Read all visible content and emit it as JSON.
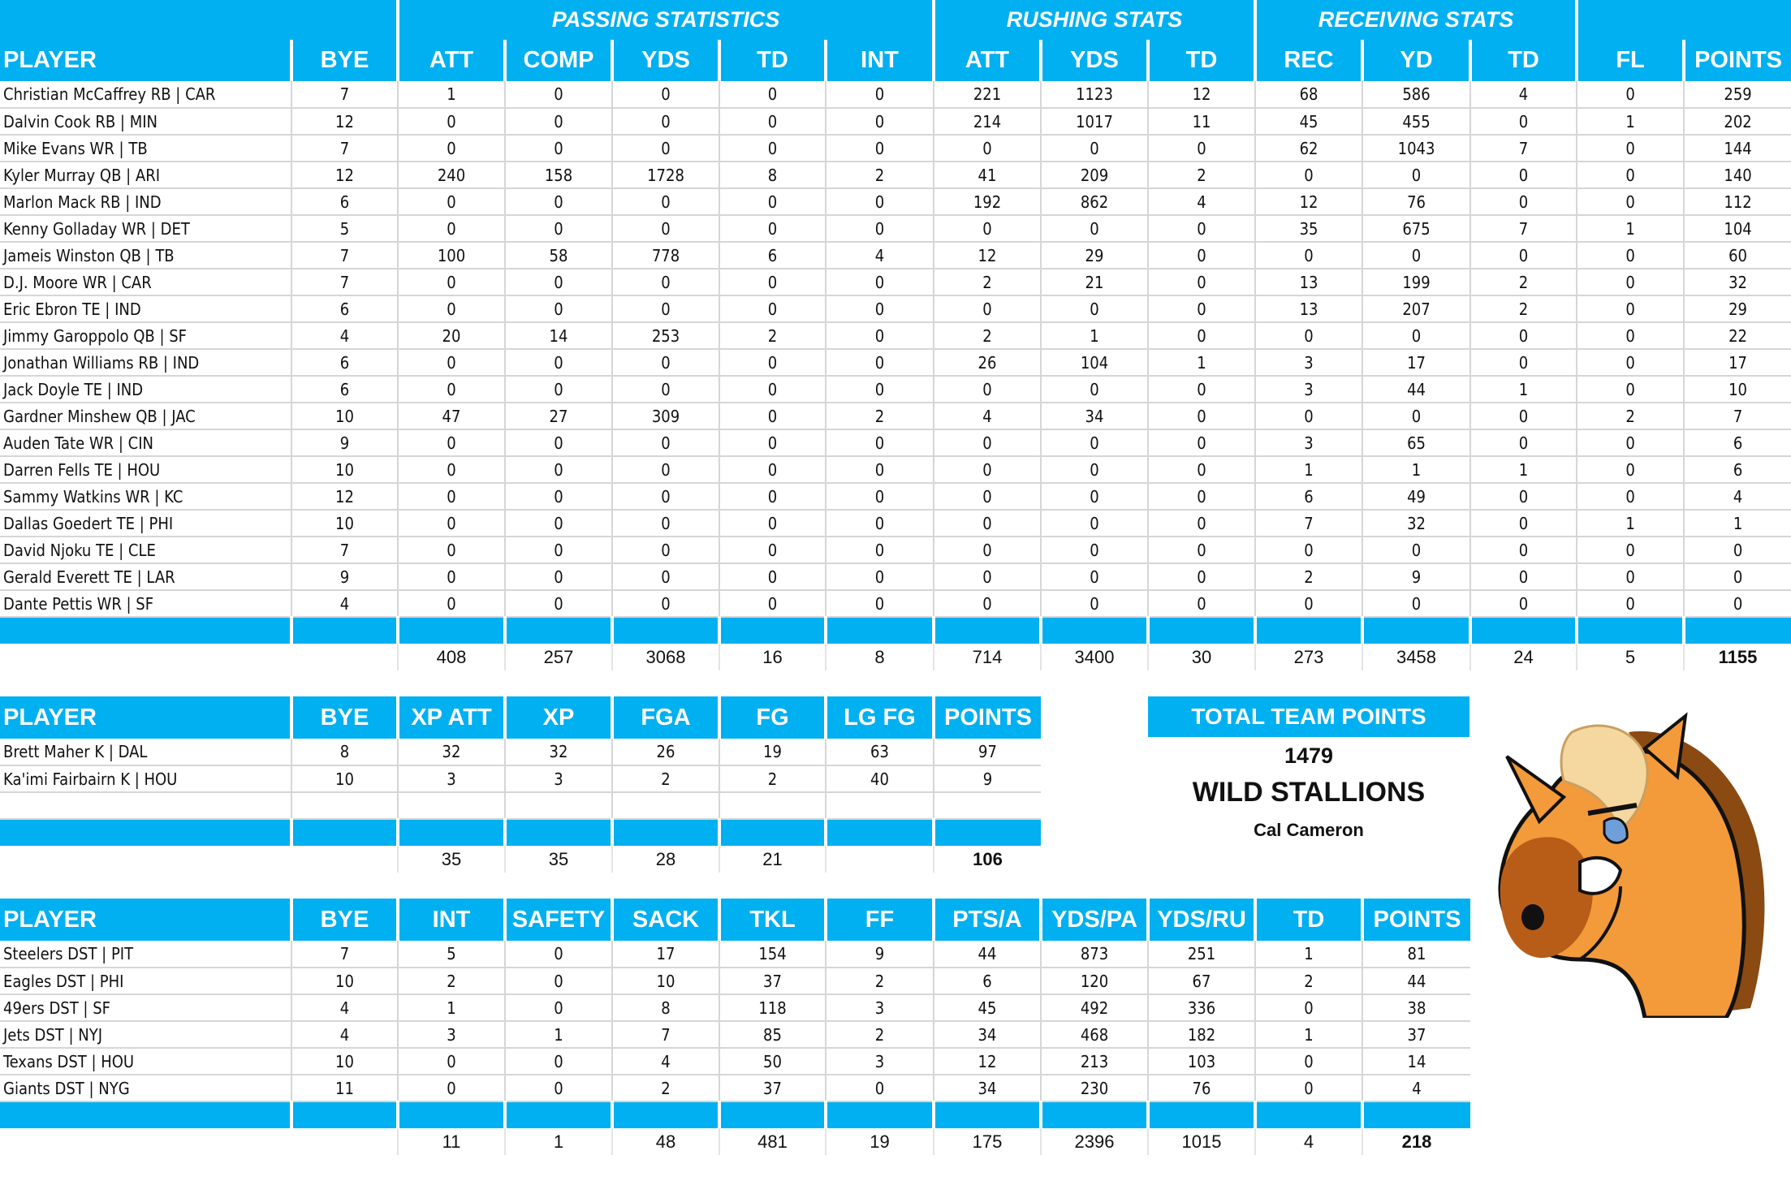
{
  "offense": {
    "groups": [
      {
        "label": ""
      },
      {
        "label": "PASSING STATISTICS"
      },
      {
        "label": "RUSHING STATS"
      },
      {
        "label": "RECEIVING STATS"
      },
      {
        "label": ""
      }
    ],
    "columns": [
      "PLAYER",
      "BYE",
      "ATT",
      "COMP",
      "YDS",
      "TD",
      "INT",
      "ATT",
      "YDS",
      "TD",
      "REC",
      "YD",
      "TD",
      "FL",
      "POINTS"
    ],
    "rows": [
      [
        "Christian McCaffrey RB | CAR",
        "7",
        "1",
        "0",
        "0",
        "0",
        "0",
        "221",
        "1123",
        "12",
        "68",
        "586",
        "4",
        "0",
        "259"
      ],
      [
        "Dalvin Cook RB | MIN",
        "12",
        "0",
        "0",
        "0",
        "0",
        "0",
        "214",
        "1017",
        "11",
        "45",
        "455",
        "0",
        "1",
        "202"
      ],
      [
        "Mike Evans WR | TB",
        "7",
        "0",
        "0",
        "0",
        "0",
        "0",
        "0",
        "0",
        "0",
        "62",
        "1043",
        "7",
        "0",
        "144"
      ],
      [
        "Kyler Murray QB | ARI",
        "12",
        "240",
        "158",
        "1728",
        "8",
        "2",
        "41",
        "209",
        "2",
        "0",
        "0",
        "0",
        "0",
        "140"
      ],
      [
        "Marlon Mack RB | IND",
        "6",
        "0",
        "0",
        "0",
        "0",
        "0",
        "192",
        "862",
        "4",
        "12",
        "76",
        "0",
        "0",
        "112"
      ],
      [
        "Kenny Golladay WR | DET",
        "5",
        "0",
        "0",
        "0",
        "0",
        "0",
        "0",
        "0",
        "0",
        "35",
        "675",
        "7",
        "1",
        "104"
      ],
      [
        "Jameis Winston QB | TB",
        "7",
        "100",
        "58",
        "778",
        "6",
        "4",
        "12",
        "29",
        "0",
        "0",
        "0",
        "0",
        "0",
        "60"
      ],
      [
        "D.J. Moore WR | CAR",
        "7",
        "0",
        "0",
        "0",
        "0",
        "0",
        "2",
        "21",
        "0",
        "13",
        "199",
        "2",
        "0",
        "32"
      ],
      [
        "Eric Ebron TE | IND",
        "6",
        "0",
        "0",
        "0",
        "0",
        "0",
        "0",
        "0",
        "0",
        "13",
        "207",
        "2",
        "0",
        "29"
      ],
      [
        "Jimmy Garoppolo QB | SF",
        "4",
        "20",
        "14",
        "253",
        "2",
        "0",
        "2",
        "1",
        "0",
        "0",
        "0",
        "0",
        "0",
        "22"
      ],
      [
        "Jonathan Williams RB | IND",
        "6",
        "0",
        "0",
        "0",
        "0",
        "0",
        "26",
        "104",
        "1",
        "3",
        "17",
        "0",
        "0",
        "17"
      ],
      [
        "Jack Doyle TE | IND",
        "6",
        "0",
        "0",
        "0",
        "0",
        "0",
        "0",
        "0",
        "0",
        "3",
        "44",
        "1",
        "0",
        "10"
      ],
      [
        "Gardner Minshew QB | JAC",
        "10",
        "47",
        "27",
        "309",
        "0",
        "2",
        "4",
        "34",
        "0",
        "0",
        "0",
        "0",
        "2",
        "7"
      ],
      [
        "Auden Tate WR | CIN",
        "9",
        "0",
        "0",
        "0",
        "0",
        "0",
        "0",
        "0",
        "0",
        "3",
        "65",
        "0",
        "0",
        "6"
      ],
      [
        "Darren Fells TE | HOU",
        "10",
        "0",
        "0",
        "0",
        "0",
        "0",
        "0",
        "0",
        "0",
        "1",
        "1",
        "1",
        "0",
        "6"
      ],
      [
        "Sammy Watkins WR | KC",
        "12",
        "0",
        "0",
        "0",
        "0",
        "0",
        "0",
        "0",
        "0",
        "6",
        "49",
        "0",
        "0",
        "4"
      ],
      [
        "Dallas Goedert TE | PHI",
        "10",
        "0",
        "0",
        "0",
        "0",
        "0",
        "0",
        "0",
        "0",
        "7",
        "32",
        "0",
        "1",
        "1"
      ],
      [
        "David Njoku TE | CLE",
        "7",
        "0",
        "0",
        "0",
        "0",
        "0",
        "0",
        "0",
        "0",
        "0",
        "0",
        "0",
        "0",
        "0"
      ],
      [
        "Gerald Everett TE | LAR",
        "9",
        "0",
        "0",
        "0",
        "0",
        "0",
        "0",
        "0",
        "0",
        "2",
        "9",
        "0",
        "0",
        "0"
      ],
      [
        "Dante Pettis WR | SF",
        "4",
        "0",
        "0",
        "0",
        "0",
        "0",
        "0",
        "0",
        "0",
        "0",
        "0",
        "0",
        "0",
        "0"
      ]
    ],
    "totals": [
      "",
      "",
      "408",
      "257",
      "3068",
      "16",
      "8",
      "714",
      "3400",
      "30",
      "273",
      "3458",
      "24",
      "5",
      "1155"
    ]
  },
  "kickers": {
    "columns": [
      "PLAYER",
      "BYE",
      "XP ATT",
      "XP",
      "FGA",
      "FG",
      "LG FG",
      "POINTS"
    ],
    "rows": [
      [
        "Brett Maher K | DAL",
        "8",
        "32",
        "32",
        "26",
        "19",
        "63",
        "97"
      ],
      [
        "Ka'imi Fairbairn K | HOU",
        "10",
        "3",
        "3",
        "2",
        "2",
        "40",
        "9"
      ],
      [
        "",
        "",
        "",
        "",
        "",
        "",
        "",
        ""
      ]
    ],
    "totals": [
      "",
      "",
      "35",
      "35",
      "28",
      "21",
      "",
      "106"
    ]
  },
  "defense": {
    "columns": [
      "PLAYER",
      "BYE",
      "INT",
      "SAFETY",
      "SACK",
      "TKL",
      "FF",
      "PTS/A",
      "YDS/PA",
      "YDS/RU",
      "TD",
      "POINTS"
    ],
    "rows": [
      [
        "Steelers DST | PIT",
        "7",
        "5",
        "0",
        "17",
        "154",
        "9",
        "44",
        "873",
        "251",
        "1",
        "81"
      ],
      [
        "Eagles DST | PHI",
        "10",
        "2",
        "0",
        "10",
        "37",
        "2",
        "6",
        "120",
        "67",
        "2",
        "44"
      ],
      [
        "49ers DST | SF",
        "4",
        "1",
        "0",
        "8",
        "118",
        "3",
        "45",
        "492",
        "336",
        "0",
        "38"
      ],
      [
        "Jets DST | NYJ",
        "4",
        "3",
        "1",
        "7",
        "85",
        "2",
        "34",
        "468",
        "182",
        "1",
        "37"
      ],
      [
        "Texans DST | HOU",
        "10",
        "0",
        "0",
        "4",
        "50",
        "3",
        "12",
        "213",
        "103",
        "0",
        "14"
      ],
      [
        "Giants DST | NYG",
        "11",
        "0",
        "0",
        "2",
        "37",
        "0",
        "34",
        "230",
        "76",
        "0",
        "4"
      ]
    ],
    "totals": [
      "",
      "",
      "11",
      "1",
      "48",
      "481",
      "19",
      "175",
      "2396",
      "1015",
      "4",
      "218"
    ]
  },
  "summary": {
    "title": "TOTAL TEAM POINTS",
    "value": "1479",
    "team_name": "WILD STALLIONS",
    "owner": "Cal Cameron",
    "mascot_icon": "horse-mascot-icon"
  },
  "colors": {
    "header_bg": "#00b0f0",
    "header_text": "#ffffff",
    "grid": "#d6d6d6"
  }
}
